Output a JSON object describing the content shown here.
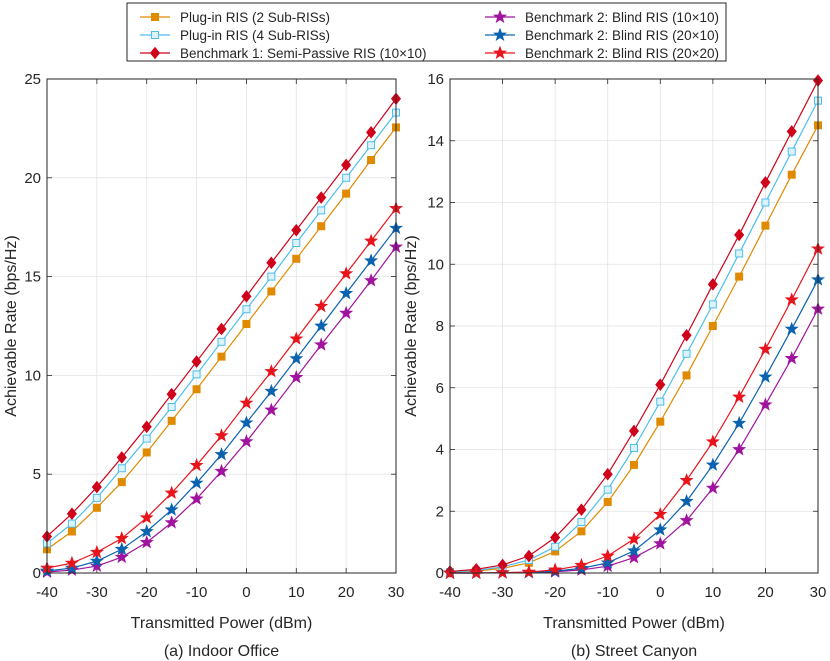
{
  "legend": [
    {
      "label": "Plug-in RIS (2 Sub-RISs)",
      "color": "#E08A00",
      "marker": "square",
      "filled": true
    },
    {
      "label": "Plug-in RIS (4 Sub-RISs)",
      "color": "#4DBEEE",
      "marker": "square",
      "filled": false
    },
    {
      "label": "Benchmark 1: Semi-Passive RIS (10×10)",
      "color": "#D0021B",
      "marker": "diamond",
      "filled": true
    },
    {
      "label": "Benchmark 2: Blind RIS (10×10)",
      "color": "#A0139E",
      "marker": "star",
      "filled": true
    },
    {
      "label": "Benchmark 2: Blind RIS (20×10)",
      "color": "#0B63B0",
      "marker": "star",
      "filled": true
    },
    {
      "label": "Benchmark 2: Blind RIS (20×20)",
      "color": "#E8141C",
      "marker": "star",
      "filled": true
    }
  ],
  "chart_data": [
    {
      "type": "line",
      "caption": "(a) Indoor Office",
      "xlabel": "Transmitted Power (dBm)",
      "ylabel": "Achievable Rate (bps/Hz)",
      "xlim": [
        -40,
        30
      ],
      "ylim": [
        0,
        25
      ],
      "xticks": [
        "-40",
        "-30",
        "-20",
        "-10",
        "0",
        "10",
        "20",
        "30"
      ],
      "yticks": [
        "0",
        "5",
        "10",
        "15",
        "20",
        "25"
      ],
      "grid": true,
      "x": [
        -40,
        -35,
        -30,
        -25,
        -20,
        -15,
        -10,
        -5,
        0,
        5,
        10,
        15,
        20,
        25,
        30
      ],
      "series": [
        {
          "name": "Plug-in RIS (2 Sub-RISs)",
          "values": [
            1.2,
            2.1,
            3.3,
            4.6,
            6.1,
            7.7,
            9.3,
            10.95,
            12.6,
            14.25,
            15.9,
            17.55,
            19.2,
            20.9,
            22.55
          ]
        },
        {
          "name": "Plug-in RIS (4 Sub-RISs)",
          "values": [
            1.5,
            2.5,
            3.8,
            5.3,
            6.8,
            8.4,
            10.05,
            11.7,
            13.35,
            15.0,
            16.7,
            18.35,
            20.0,
            21.65,
            23.3
          ]
        },
        {
          "name": "Benchmark 1: Semi-Passive RIS (10×10)",
          "values": [
            1.85,
            3.0,
            4.35,
            5.85,
            7.4,
            9.05,
            10.7,
            12.35,
            14.0,
            15.7,
            17.35,
            19.0,
            20.65,
            22.3,
            24.0
          ]
        },
        {
          "name": "Benchmark 2: Blind RIS (10×10)",
          "values": [
            0.05,
            0.15,
            0.35,
            0.8,
            1.55,
            2.55,
            3.75,
            5.15,
            6.65,
            8.25,
            9.9,
            11.55,
            13.15,
            14.8,
            16.5
          ]
        },
        {
          "name": "Benchmark 2: Blind RIS (20×10)",
          "values": [
            0.1,
            0.25,
            0.6,
            1.2,
            2.1,
            3.2,
            4.55,
            6.0,
            7.6,
            9.2,
            10.85,
            12.5,
            14.15,
            15.8,
            17.45
          ]
        },
        {
          "name": "Benchmark 2: Blind RIS (20×20)",
          "values": [
            0.25,
            0.5,
            1.05,
            1.75,
            2.8,
            4.05,
            5.45,
            6.95,
            8.6,
            10.2,
            11.85,
            13.5,
            15.15,
            16.8,
            18.45
          ]
        }
      ]
    },
    {
      "type": "line",
      "caption": "(b) Street Canyon",
      "xlabel": "Transmitted Power (dBm)",
      "ylabel": "Achievable Rate (bps/Hz)",
      "xlim": [
        -40,
        30
      ],
      "ylim": [
        0,
        16
      ],
      "xticks": [
        "-40",
        "-30",
        "-20",
        "-10",
        "0",
        "10",
        "20",
        "30"
      ],
      "yticks": [
        "0",
        "2",
        "4",
        "6",
        "8",
        "10",
        "12",
        "14",
        "16"
      ],
      "grid": true,
      "x": [
        -40,
        -35,
        -30,
        -25,
        -20,
        -15,
        -10,
        -5,
        0,
        5,
        10,
        15,
        20,
        25,
        30
      ],
      "series": [
        {
          "name": "Plug-in RIS (2 Sub-RISs)",
          "values": [
            0.02,
            0.06,
            0.15,
            0.33,
            0.7,
            1.35,
            2.3,
            3.5,
            4.9,
            6.4,
            8.0,
            9.6,
            11.25,
            12.9,
            14.5
          ]
        },
        {
          "name": "Plug-in RIS (4 Sub-RISs)",
          "values": [
            0.03,
            0.08,
            0.2,
            0.42,
            0.85,
            1.65,
            2.7,
            4.05,
            5.55,
            7.1,
            8.7,
            10.35,
            12.0,
            13.65,
            15.3
          ]
        },
        {
          "name": "Benchmark 1: Semi-Passive RIS (10×10)",
          "values": [
            0.05,
            0.12,
            0.26,
            0.55,
            1.15,
            2.05,
            3.2,
            4.6,
            6.1,
            7.7,
            9.35,
            10.95,
            12.65,
            14.3,
            15.95
          ]
        },
        {
          "name": "Benchmark 2: Blind RIS (10×10)",
          "values": [
            0.0,
            0.0,
            0.01,
            0.02,
            0.04,
            0.1,
            0.22,
            0.5,
            0.95,
            1.7,
            2.75,
            4.0,
            5.45,
            6.95,
            8.55
          ]
        },
        {
          "name": "Benchmark 2: Blind RIS (20×10)",
          "values": [
            0.0,
            0.0,
            0.01,
            0.02,
            0.06,
            0.15,
            0.33,
            0.72,
            1.4,
            2.32,
            3.5,
            4.85,
            6.35,
            7.9,
            9.5
          ]
        },
        {
          "name": "Benchmark 2: Blind RIS (20×20)",
          "values": [
            0.0,
            0.0,
            0.01,
            0.03,
            0.1,
            0.25,
            0.55,
            1.1,
            1.9,
            3.0,
            4.25,
            5.7,
            7.25,
            8.85,
            10.5
          ]
        }
      ]
    }
  ]
}
